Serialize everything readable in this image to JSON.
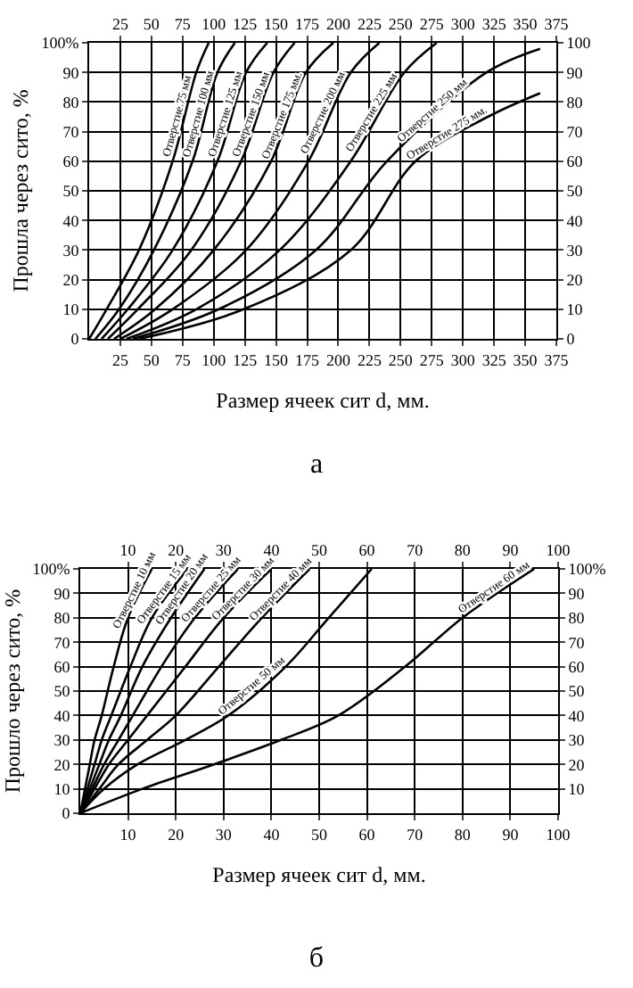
{
  "chart_data": [
    {
      "type": "line",
      "title": "а",
      "xlabel": "Размер ячеек сит d, мм.",
      "ylabel": "Прошла через сито, %",
      "xlim": [
        0,
        375
      ],
      "xticks": [
        25,
        50,
        75,
        100,
        125,
        150,
        175,
        200,
        225,
        250,
        275,
        300,
        325,
        350,
        375
      ],
      "x2lim": [
        0,
        375
      ],
      "x2ticks": [
        25,
        50,
        75,
        100,
        125,
        150,
        175,
        200,
        225,
        250,
        275,
        300,
        325,
        350,
        375
      ],
      "ylim": [
        0,
        100
      ],
      "yticks": [
        0,
        10,
        20,
        30,
        40,
        50,
        60,
        70,
        80,
        90,
        {
          "value": 100,
          "label": "100%"
        }
      ],
      "y2lim": [
        0,
        100
      ],
      "y2ticks": [
        0,
        10,
        20,
        30,
        40,
        50,
        60,
        70,
        80,
        90,
        100
      ],
      "grid": true,
      "legend": false,
      "series": [
        {
          "name": "Отверстие 75 мм",
          "color": "#000000",
          "x": [
            0,
            14,
            40,
            67,
            86,
            96
          ],
          "values": [
            0,
            10,
            30,
            60,
            90,
            100
          ]
        },
        {
          "name": "Отверстие 100 мм",
          "color": "#000000",
          "x": [
            5,
            24,
            52,
            83,
            103,
            117
          ],
          "values": [
            0,
            10,
            30,
            60,
            90,
            100
          ]
        },
        {
          "name": "Отверстие 125 мм",
          "color": "#000000",
          "x": [
            10,
            31,
            67,
            103,
            126,
            143
          ],
          "values": [
            0,
            10,
            30,
            60,
            90,
            100
          ]
        },
        {
          "name": "Отверстие 150 мм",
          "color": "#000000",
          "x": [
            15,
            39,
            82,
            122,
            148,
            165
          ],
          "values": [
            0,
            10,
            30,
            60,
            90,
            100
          ]
        },
        {
          "name": "Отверстие 175 мм.",
          "color": "#000000",
          "x": [
            20,
            53,
            100,
            146,
            174,
            196
          ],
          "values": [
            0,
            10,
            30,
            60,
            90,
            100
          ]
        },
        {
          "name": "Отверстие 200 мм",
          "color": "#000000",
          "x": [
            25,
            67,
            126,
            176,
            210,
            233
          ],
          "values": [
            0,
            10,
            30,
            60,
            90,
            100
          ]
        },
        {
          "name": "Отверстие 225 мм",
          "color": "#000000",
          "x": [
            30,
            86,
            153,
            210,
            253,
            279
          ],
          "values": [
            0,
            10,
            30,
            60,
            90,
            100
          ]
        },
        {
          "name": "Отверстие 250 мм",
          "color": "#000000",
          "x": [
            35,
            104,
            182,
            239,
            319,
            362
          ],
          "values": [
            0,
            10,
            30,
            60,
            90,
            98
          ]
        },
        {
          "name": "Отверстие 275 мм.",
          "color": "#000000",
          "x": [
            40,
            124,
            210,
            262,
            320,
            362
          ],
          "values": [
            0,
            10,
            30,
            60,
            75,
            83
          ]
        }
      ]
    },
    {
      "type": "line",
      "title": "б",
      "xlabel": "Размер ячеек сит d, мм.",
      "ylabel": "Прошло через сито, %",
      "xlim": [
        0,
        100
      ],
      "xticks": [
        10,
        20,
        30,
        40,
        50,
        60,
        70,
        80,
        90,
        100
      ],
      "x2lim": [
        0,
        100
      ],
      "x2ticks": [
        10,
        20,
        30,
        40,
        50,
        60,
        70,
        80,
        90,
        100
      ],
      "ylim": [
        0,
        100
      ],
      "yticks": [
        0,
        10,
        20,
        30,
        40,
        50,
        60,
        70,
        80,
        90,
        {
          "value": 100,
          "label": "100%"
        }
      ],
      "y2lim": [
        0,
        100
      ],
      "y2ticks": [
        10,
        20,
        30,
        40,
        50,
        60,
        70,
        80,
        90,
        {
          "value": 100,
          "label": "100%"
        }
      ],
      "grid": true,
      "legend": false,
      "series": [
        {
          "name": "Отверстие 10 мм",
          "color": "#000000",
          "x": [
            0,
            1,
            2,
            3,
            4.5,
            7,
            10,
            15
          ],
          "values": [
            0,
            10,
            20,
            30,
            40,
            60,
            80,
            100
          ]
        },
        {
          "name": "Отверстие 15 мм",
          "color": "#000000",
          "x": [
            0,
            1.5,
            3,
            4.5,
            6.5,
            10.5,
            15,
            22.5
          ],
          "values": [
            0,
            10,
            20,
            30,
            40,
            60,
            80,
            100
          ]
        },
        {
          "name": "Отверстие 20 мм",
          "color": "#000000",
          "x": [
            0,
            2,
            4,
            6,
            8.5,
            13,
            19,
            26
          ],
          "values": [
            0,
            10,
            20,
            30,
            40,
            60,
            80,
            100
          ]
        },
        {
          "name": "Отверстие 25 мм",
          "color": "#000000",
          "x": [
            0,
            2.5,
            5,
            8,
            11,
            17,
            24,
            33
          ],
          "values": [
            0,
            10,
            20,
            30,
            40,
            60,
            80,
            100
          ]
        },
        {
          "name": "Отверстие 30 мм",
          "color": "#000000",
          "x": [
            0,
            3,
            6,
            10,
            14,
            22,
            30,
            40
          ],
          "values": [
            0,
            10,
            20,
            30,
            40,
            60,
            80,
            100
          ]
        },
        {
          "name": "Отверстие 40 мм",
          "color": "#000000",
          "x": [
            0,
            4,
            8,
            14,
            20,
            29,
            38,
            48
          ],
          "values": [
            0,
            10,
            20,
            30,
            40,
            60,
            80,
            100
          ]
        },
        {
          "name": "Отверстие 50 мм",
          "color": "#000000",
          "x": [
            0,
            5,
            12,
            22,
            31,
            43,
            52,
            61
          ],
          "values": [
            0,
            10,
            20,
            30,
            40,
            60,
            80,
            100
          ]
        },
        {
          "name": "Отверстие 60 мм",
          "color": "#000000",
          "x": [
            0,
            13,
            28,
            42,
            54,
            68,
            80,
            95
          ],
          "values": [
            0,
            10,
            20,
            30,
            40,
            60,
            80,
            100
          ]
        }
      ]
    }
  ]
}
